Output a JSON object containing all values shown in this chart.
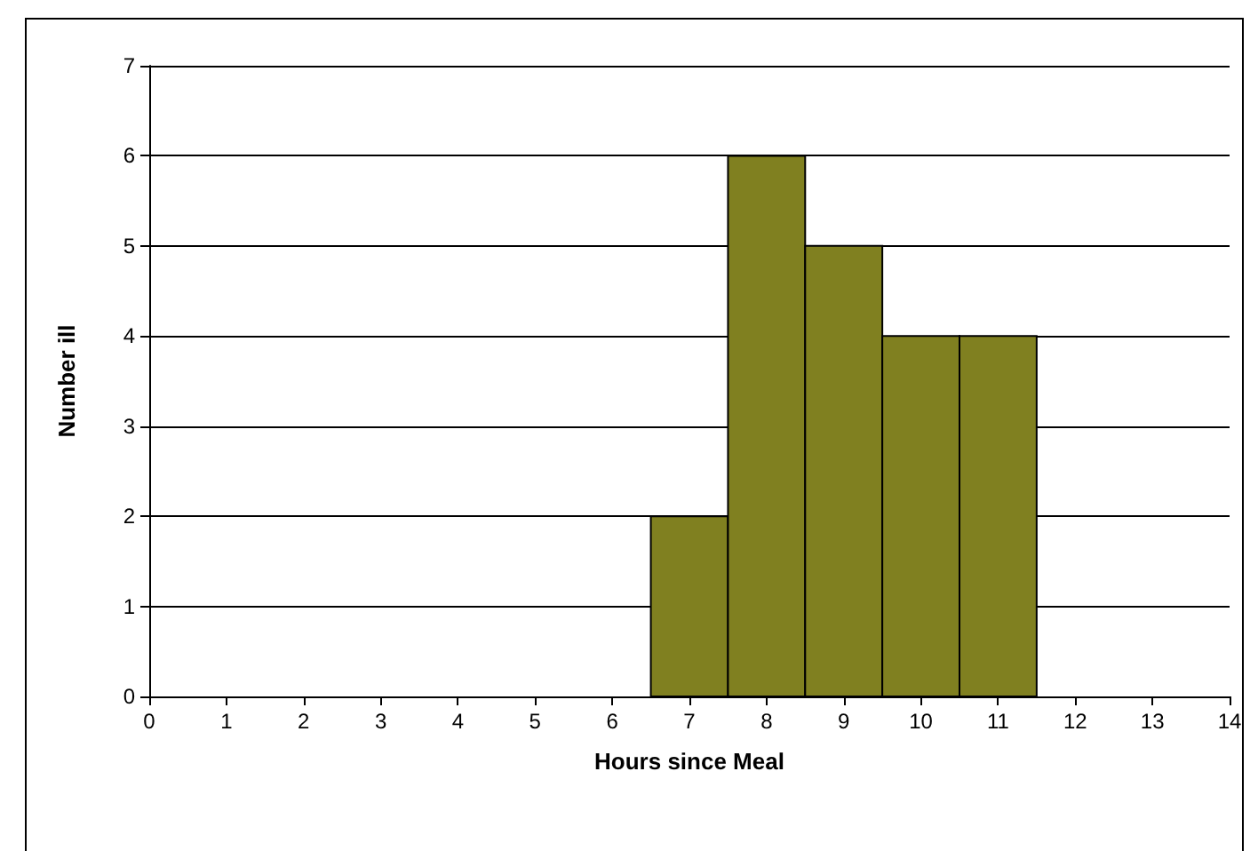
{
  "chart_data": {
    "type": "histogram",
    "xlabel": "Hours since Meal",
    "ylabel": "Number ill",
    "bins": [
      6.5,
      7.5,
      8.5,
      9.5,
      10.5,
      11.5
    ],
    "values": [
      2,
      6,
      5,
      4,
      4
    ],
    "color": "#808020",
    "xlim": [
      0,
      14
    ],
    "xticks": [
      0,
      1,
      2,
      3,
      4,
      5,
      6,
      7,
      8,
      9,
      10,
      11,
      12,
      13,
      14
    ],
    "ylim": [
      0,
      7
    ],
    "yticks": [
      0,
      1,
      2,
      3,
      4,
      5,
      6,
      7
    ],
    "grid": "y"
  }
}
